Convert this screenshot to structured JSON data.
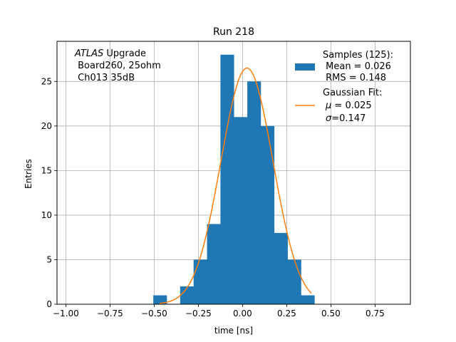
{
  "chart_data": {
    "type": "bar",
    "title": "Run 218",
    "xlabel": "time [ns]",
    "ylabel": "Entries",
    "xlim": [
      -1.05,
      0.95
    ],
    "ylim": [
      0,
      29.5
    ],
    "grid": true,
    "xticks": [
      -1.0,
      -0.75,
      -0.5,
      -0.25,
      0.0,
      0.25,
      0.5,
      0.75
    ],
    "xtick_labels": [
      "−1.00",
      "−0.75",
      "−0.50",
      "−0.25",
      "0.00",
      "0.25",
      "0.50",
      "0.75"
    ],
    "yticks": [
      0,
      5,
      10,
      15,
      20,
      25
    ],
    "ytick_labels": [
      "0",
      "5",
      "10",
      "15",
      "20",
      "25"
    ],
    "bin_width": 0.076,
    "bins": [
      {
        "x0": -0.505,
        "count": 1
      },
      {
        "x0": -0.353,
        "count": 2
      },
      {
        "x0": -0.277,
        "count": 5
      },
      {
        "x0": -0.201,
        "count": 9
      },
      {
        "x0": -0.125,
        "count": 28
      },
      {
        "x0": -0.049,
        "count": 21
      },
      {
        "x0": 0.027,
        "count": 25
      },
      {
        "x0": 0.103,
        "count": 20
      },
      {
        "x0": 0.179,
        "count": 8
      },
      {
        "x0": 0.255,
        "count": 5
      },
      {
        "x0": 0.331,
        "count": 1
      }
    ],
    "fit": {
      "mu": 0.025,
      "sigma": 0.147,
      "peak": 26.5,
      "x_range": [
        -0.47,
        0.39
      ]
    },
    "colors": {
      "hist": "#1f77b4",
      "fit": "#ff7f0e",
      "grid": "#b0b0b0"
    },
    "annotation": {
      "brand": "ATLAS",
      "line1_rest": " Upgrade",
      "line2": " Board260, 25ohm",
      "line3": " Ch013 35dB"
    },
    "legend": {
      "placement": "top-right",
      "hist": {
        "line1": "Samples (125):",
        "line2": " Mean = 0.026",
        "line3": " RMS = 0.148"
      },
      "fit": {
        "line1": "Gaussian Fit:",
        "mu_sym": "μ",
        "mu_val": " = 0.025",
        "sigma_sym": "σ",
        "sigma_val": "=0.147"
      }
    }
  }
}
